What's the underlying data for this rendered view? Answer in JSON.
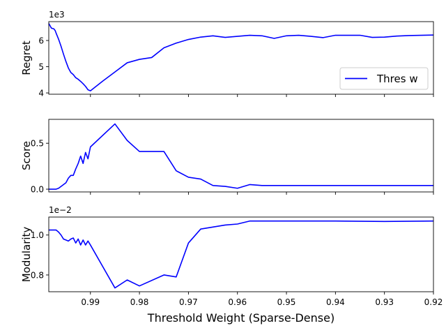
{
  "figure": {
    "xlabel": "Threshold Weight (Sparse-Dense)",
    "x_tick_labels": [
      "0.99",
      "0.98",
      "0.97",
      "0.96",
      "0.95",
      "0.94",
      "0.93",
      "0.92"
    ]
  },
  "chart_data": [
    {
      "type": "line",
      "ylabel": "Regret",
      "offset_text": "1e3",
      "xlim": [
        0.9985,
        0.92
      ],
      "ylim": [
        3.95,
        6.72
      ],
      "yticks": [
        4,
        5,
        6
      ],
      "ytick_labels": [
        "4",
        "5",
        "6"
      ],
      "legend": {
        "placement": "lower-right",
        "entries": [
          "Thres w"
        ]
      },
      "series": [
        {
          "name": "Thres w",
          "color": "#0000ff",
          "x": [
            0.9985,
            0.9982,
            0.998,
            0.9978,
            0.9975,
            0.9972,
            0.997,
            0.9965,
            0.996,
            0.9955,
            0.995,
            0.9945,
            0.994,
            0.9935,
            0.993,
            0.9925,
            0.992,
            0.9915,
            0.991,
            0.9905,
            0.99,
            0.9875,
            0.985,
            0.9825,
            0.98,
            0.9775,
            0.975,
            0.9725,
            0.97,
            0.9675,
            0.965,
            0.9625,
            0.96,
            0.9575,
            0.955,
            0.9525,
            0.95,
            0.9475,
            0.945,
            0.9425,
            0.94,
            0.9375,
            0.935,
            0.9325,
            0.93,
            0.9275,
            0.925,
            0.9225,
            0.92
          ],
          "y": [
            6.65,
            6.55,
            6.48,
            6.46,
            6.45,
            6.38,
            6.28,
            6.05,
            5.78,
            5.48,
            5.2,
            4.95,
            4.78,
            4.7,
            4.58,
            4.52,
            4.44,
            4.35,
            4.25,
            4.12,
            4.08,
            4.45,
            4.8,
            5.15,
            5.28,
            5.35,
            5.72,
            5.9,
            6.04,
            6.13,
            6.18,
            6.12,
            6.16,
            6.2,
            6.18,
            6.08,
            6.18,
            6.2,
            6.16,
            6.11,
            6.2,
            6.2,
            6.2,
            6.12,
            6.13,
            6.17,
            6.19,
            6.2,
            6.21
          ]
        }
      ]
    },
    {
      "type": "line",
      "ylabel": "Score",
      "xlim": [
        0.9985,
        0.92
      ],
      "ylim": [
        -0.03,
        0.76
      ],
      "yticks": [
        0.0,
        0.5
      ],
      "ytick_labels": [
        "0.0",
        "0.5"
      ],
      "series": [
        {
          "color": "#0000ff",
          "x": [
            0.9985,
            0.998,
            0.9975,
            0.997,
            0.9965,
            0.996,
            0.9955,
            0.995,
            0.9945,
            0.994,
            0.9935,
            0.993,
            0.9925,
            0.992,
            0.9915,
            0.991,
            0.9905,
            0.99,
            0.985,
            0.9825,
            0.98,
            0.975,
            0.9725,
            0.97,
            0.9675,
            0.965,
            0.9625,
            0.96,
            0.9575,
            0.955,
            0.95,
            0.94,
            0.93,
            0.92
          ],
          "y": [
            0.0,
            0.0,
            0.0,
            0.0,
            0.01,
            0.03,
            0.05,
            0.07,
            0.12,
            0.15,
            0.15,
            0.22,
            0.28,
            0.36,
            0.28,
            0.4,
            0.33,
            0.46,
            0.71,
            0.53,
            0.41,
            0.41,
            0.2,
            0.13,
            0.11,
            0.04,
            0.03,
            0.01,
            0.05,
            0.04,
            0.04,
            0.04,
            0.04,
            0.04
          ]
        }
      ]
    },
    {
      "type": "line",
      "ylabel": "Modularity",
      "offset_text": "1e−2",
      "xlim": [
        0.9985,
        0.92
      ],
      "ylim": [
        0.716,
        1.09
      ],
      "yticks": [
        0.8,
        1.0
      ],
      "ytick_labels": [
        "0.8",
        "1.0"
      ],
      "series": [
        {
          "color": "#0000ff",
          "x": [
            0.9985,
            0.998,
            0.9975,
            0.997,
            0.9965,
            0.996,
            0.9955,
            0.995,
            0.9945,
            0.994,
            0.9935,
            0.993,
            0.9925,
            0.992,
            0.9915,
            0.991,
            0.9905,
            0.99,
            0.985,
            0.9825,
            0.98,
            0.975,
            0.9725,
            0.97,
            0.9675,
            0.965,
            0.9625,
            0.96,
            0.9575,
            0.955,
            0.95,
            0.94,
            0.93,
            0.92
          ],
          "y": [
            1.025,
            1.025,
            1.025,
            1.025,
            1.015,
            1.0,
            0.98,
            0.975,
            0.97,
            0.98,
            0.985,
            0.96,
            0.98,
            0.95,
            0.975,
            0.95,
            0.97,
            0.95,
            0.735,
            0.775,
            0.745,
            0.8,
            0.79,
            0.96,
            1.03,
            1.04,
            1.05,
            1.055,
            1.07,
            1.07,
            1.07,
            1.07,
            1.068,
            1.07
          ]
        }
      ]
    }
  ]
}
